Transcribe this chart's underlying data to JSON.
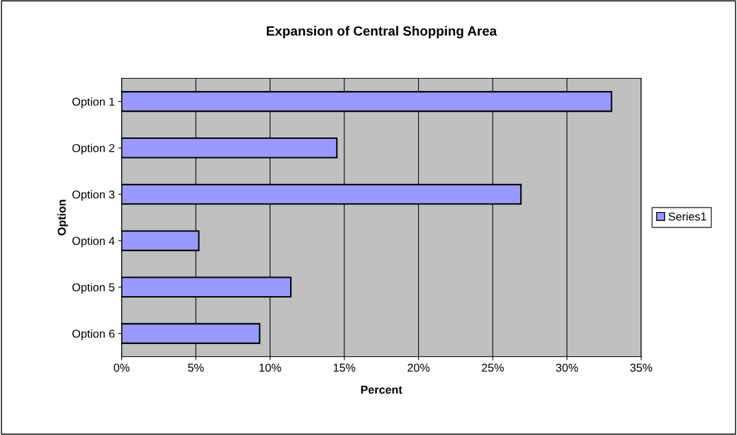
{
  "chart_data": {
    "type": "bar",
    "orientation": "horizontal",
    "title": "Expansion of Central Shopping Area",
    "xlabel": "Percent",
    "ylabel": "Option",
    "categories": [
      "Option 1",
      "Option 2",
      "Option 3",
      "Option 4",
      "Option 5",
      "Option 6"
    ],
    "series": [
      {
        "name": "Series1",
        "color": "#9999ff",
        "values": [
          33.0,
          14.5,
          26.9,
          5.2,
          11.4,
          9.3
        ]
      }
    ],
    "xlim": [
      0,
      35
    ],
    "xticks": [
      {
        "value": 0,
        "label": "0%"
      },
      {
        "value": 5,
        "label": "5%"
      },
      {
        "value": 10,
        "label": "10%"
      },
      {
        "value": 15,
        "label": "15%"
      },
      {
        "value": 20,
        "label": "20%"
      },
      {
        "value": 25,
        "label": "25%"
      },
      {
        "value": 30,
        "label": "30%"
      },
      {
        "value": 35,
        "label": "35%"
      }
    ],
    "grid": "x",
    "legend": "right"
  }
}
